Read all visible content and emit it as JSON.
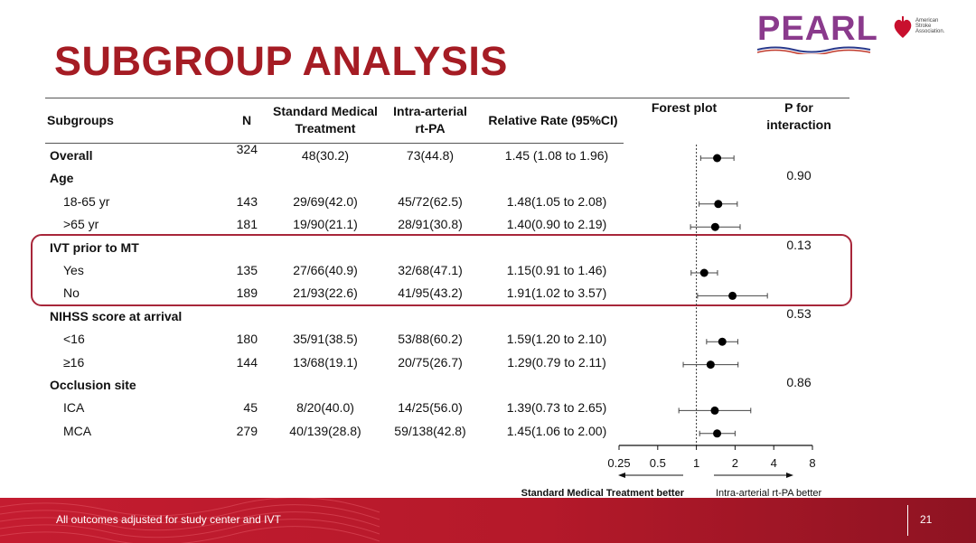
{
  "slide": {
    "title": "SUBGROUP ANALYSIS",
    "footer_note": "All outcomes adjusted for study center and IVT",
    "page_number": "21",
    "logo_text": "PEARL",
    "logo_secondary_lines": [
      "American",
      "Stroke",
      "Association."
    ],
    "highlight_color": "#a8263a",
    "title_color": "#a51c24"
  },
  "headers": {
    "subgroups": "Subgroups",
    "n": "N",
    "smt": "Standard Medical\nTreatment",
    "ia": "Intra-arterial\nrt-PA",
    "rr": "Relative Rate (95%CI)",
    "forest": "Forest plot",
    "p": "P for\ninteraction"
  },
  "rows": [
    {
      "label": "Overall",
      "bold": true,
      "indent": false,
      "n": "324",
      "smt": "48(30.2)",
      "ia": "73(44.8)",
      "rr": "1.45 (1.08 to 1.96)",
      "p": ""
    },
    {
      "label": "Age",
      "bold": true,
      "indent": false,
      "n": "",
      "smt": "",
      "ia": "",
      "rr": "",
      "p": "0.90"
    },
    {
      "label": "18-65 yr",
      "bold": false,
      "indent": true,
      "n": "143",
      "smt": "29/69(42.0)",
      "ia": "45/72(62.5)",
      "rr": "1.48(1.05 to 2.08)",
      "p": ""
    },
    {
      "label": ">65 yr",
      "bold": false,
      "indent": true,
      "n": "181",
      "smt": "19/90(21.1)",
      "ia": "28/91(30.8)",
      "rr": "1.40(0.90 to 2.19)",
      "p": ""
    },
    {
      "label": "IVT prior to MT",
      "bold": true,
      "indent": false,
      "n": "",
      "smt": "",
      "ia": "",
      "rr": "",
      "p": "0.13"
    },
    {
      "label": "Yes",
      "bold": false,
      "indent": true,
      "n": "135",
      "smt": "27/66(40.9)",
      "ia": "32/68(47.1)",
      "rr": "1.15(0.91 to 1.46)",
      "p": ""
    },
    {
      "label": "No",
      "bold": false,
      "indent": true,
      "n": "189",
      "smt": "21/93(22.6)",
      "ia": "41/95(43.2)",
      "rr": "1.91(1.02 to 3.57)",
      "p": ""
    },
    {
      "label": "NIHSS score at arrival",
      "bold": true,
      "indent": false,
      "n": "",
      "smt": "",
      "ia": "",
      "rr": "",
      "p": "0.53"
    },
    {
      "label": "<16",
      "bold": false,
      "indent": true,
      "n": "180",
      "smt": "35/91(38.5)",
      "ia": "53/88(60.2)",
      "rr": "1.59(1.20 to 2.10)",
      "p": ""
    },
    {
      "label": "≥16",
      "bold": false,
      "indent": true,
      "n": "144",
      "smt": "13/68(19.1)",
      "ia": "20/75(26.7)",
      "rr": "1.29(0.79 to 2.11)",
      "p": ""
    },
    {
      "label": "Occlusion site",
      "bold": true,
      "indent": false,
      "n": "",
      "smt": "",
      "ia": "",
      "rr": "",
      "p": "0.86"
    },
    {
      "label": "ICA",
      "bold": false,
      "indent": true,
      "n": "45",
      "smt": "8/20(40.0)",
      "ia": "14/25(56.0)",
      "rr": "1.39(0.73 to 2.65)",
      "p": ""
    },
    {
      "label": "MCA",
      "bold": false,
      "indent": true,
      "n": "279",
      "smt": "40/139(28.8)",
      "ia": "59/138(42.8)",
      "rr": "1.45(1.06 to 2.00)",
      "p": ""
    }
  ],
  "chart_data": {
    "type": "scatter",
    "subtype": "forest-plot",
    "scale": "log2",
    "xlim": [
      0.25,
      8
    ],
    "ticks": [
      0.25,
      0.5,
      1,
      2,
      4,
      8
    ],
    "tick_labels": [
      "0.25",
      "0.5",
      "1",
      "2",
      "4",
      "8"
    ],
    "reference_line": 1,
    "left_label": "Standard Medical Treatment better",
    "right_label": "Intra-arterial rt-PA better",
    "points": [
      {
        "row": 0,
        "est": 1.45,
        "lo": 1.08,
        "hi": 1.96
      },
      {
        "row": 2,
        "est": 1.48,
        "lo": 1.05,
        "hi": 2.08
      },
      {
        "row": 3,
        "est": 1.4,
        "lo": 0.9,
        "hi": 2.19
      },
      {
        "row": 5,
        "est": 1.15,
        "lo": 0.91,
        "hi": 1.46
      },
      {
        "row": 6,
        "est": 1.91,
        "lo": 1.02,
        "hi": 3.57
      },
      {
        "row": 8,
        "est": 1.59,
        "lo": 1.2,
        "hi": 2.1
      },
      {
        "row": 9,
        "est": 1.29,
        "lo": 0.79,
        "hi": 2.11
      },
      {
        "row": 11,
        "est": 1.39,
        "lo": 0.73,
        "hi": 2.65
      },
      {
        "row": 12,
        "est": 1.45,
        "lo": 1.06,
        "hi": 2.0
      }
    ]
  }
}
